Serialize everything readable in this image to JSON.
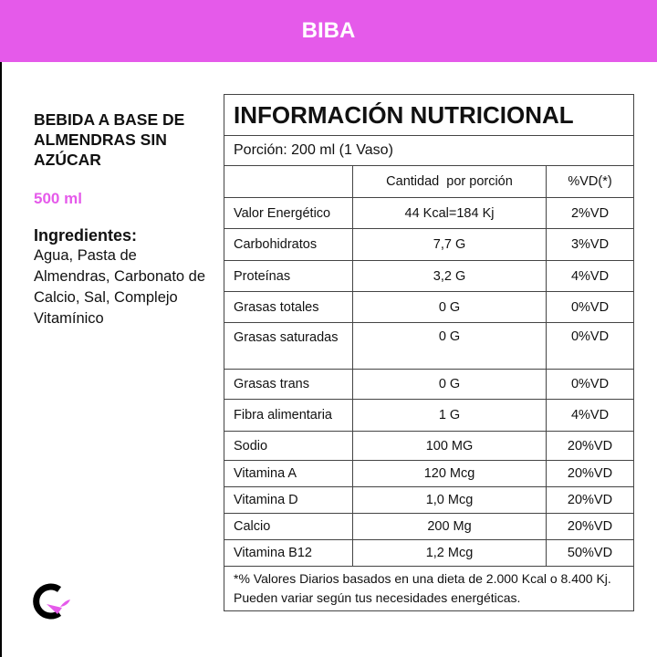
{
  "header": {
    "title": "BIBA"
  },
  "product": {
    "name": "BEBIDA A BASE DE ALMENDRAS SIN AZÚCAR",
    "volume": "500 ml",
    "ingredients_heading": "Ingredientes:",
    "ingredients": "Agua, Pasta de Almendras, Carbonato de Calcio, Sal, Complejo Vitamínico"
  },
  "table": {
    "title": "INFORMACIÓN NUTRICIONAL",
    "portion": "Porción: 200 ml (1 Vaso)",
    "columns": [
      "",
      "Cantidad  por porción",
      "%VD(*)"
    ],
    "rows": [
      [
        "Valor Energético",
        "44 Kcal=184 Kj",
        "2%VD"
      ],
      [
        "Carbohidratos",
        "7,7 G",
        "3%VD"
      ],
      [
        "Proteínas",
        "3,2 G",
        "4%VD"
      ],
      [
        "Grasas totales",
        "0 G",
        "0%VD"
      ],
      [
        "Grasas saturadas",
        "0 G",
        "0%VD"
      ],
      [
        "Grasas trans",
        "0 G",
        "0%VD"
      ],
      [
        "Fibra alimentaria",
        "1 G",
        "4%VD"
      ],
      [
        "Sodio",
        "100 MG",
        "20%VD"
      ],
      [
        "Vitamina A",
        "120 Mcg",
        "20%VD"
      ],
      [
        "Vitamina D",
        "1,0 Mcg",
        "20%VD"
      ],
      [
        "Calcio",
        "200  Mg",
        "20%VD"
      ],
      [
        "Vitamina B12",
        "1,2 Mcg",
        "50%VD"
      ]
    ],
    "footnote": "*% Valores Diarios basados en una dieta de 2.000 Kcal o 8.400 Kj. Pueden variar según tus necesidades energéticas."
  },
  "colors": {
    "accent": "#e55aea"
  },
  "logo": {
    "icon": "c-leaf-logo"
  }
}
